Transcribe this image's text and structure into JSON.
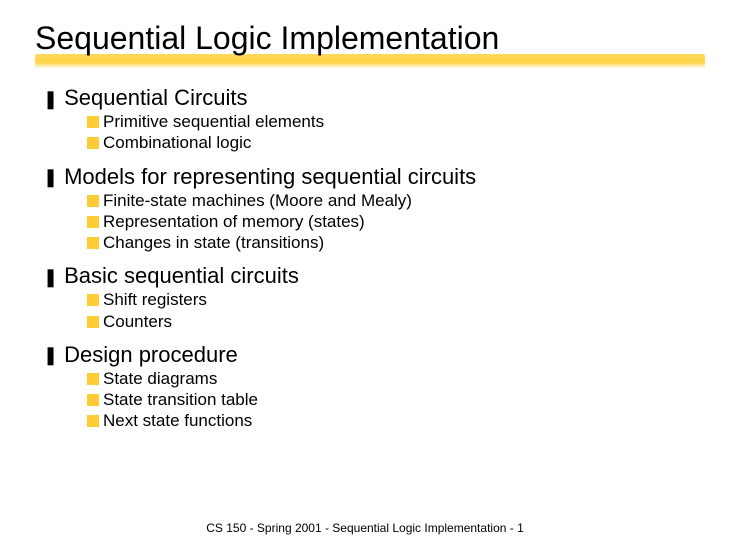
{
  "title": "Sequential Logic Implementation",
  "sections": [
    {
      "heading": "Sequential Circuits",
      "items": [
        "Primitive sequential elements",
        "Combinational logic"
      ]
    },
    {
      "heading": "Models for representing sequential circuits",
      "items": [
        "Finite-state machines (Moore and Mealy)",
        "Representation of memory (states)",
        "Changes in state (transitions)"
      ]
    },
    {
      "heading": "Basic sequential circuits",
      "items": [
        "Shift registers",
        "Counters"
      ]
    },
    {
      "heading": "Design procedure",
      "items": [
        "State diagrams",
        "State transition table",
        "Next state functions"
      ]
    }
  ],
  "footer": "CS 150 - Spring  2001 - Sequential Logic Implementation - 1",
  "colors": {
    "bullet_lvl2": "#ffcc33",
    "underline": "#ffcc33"
  }
}
